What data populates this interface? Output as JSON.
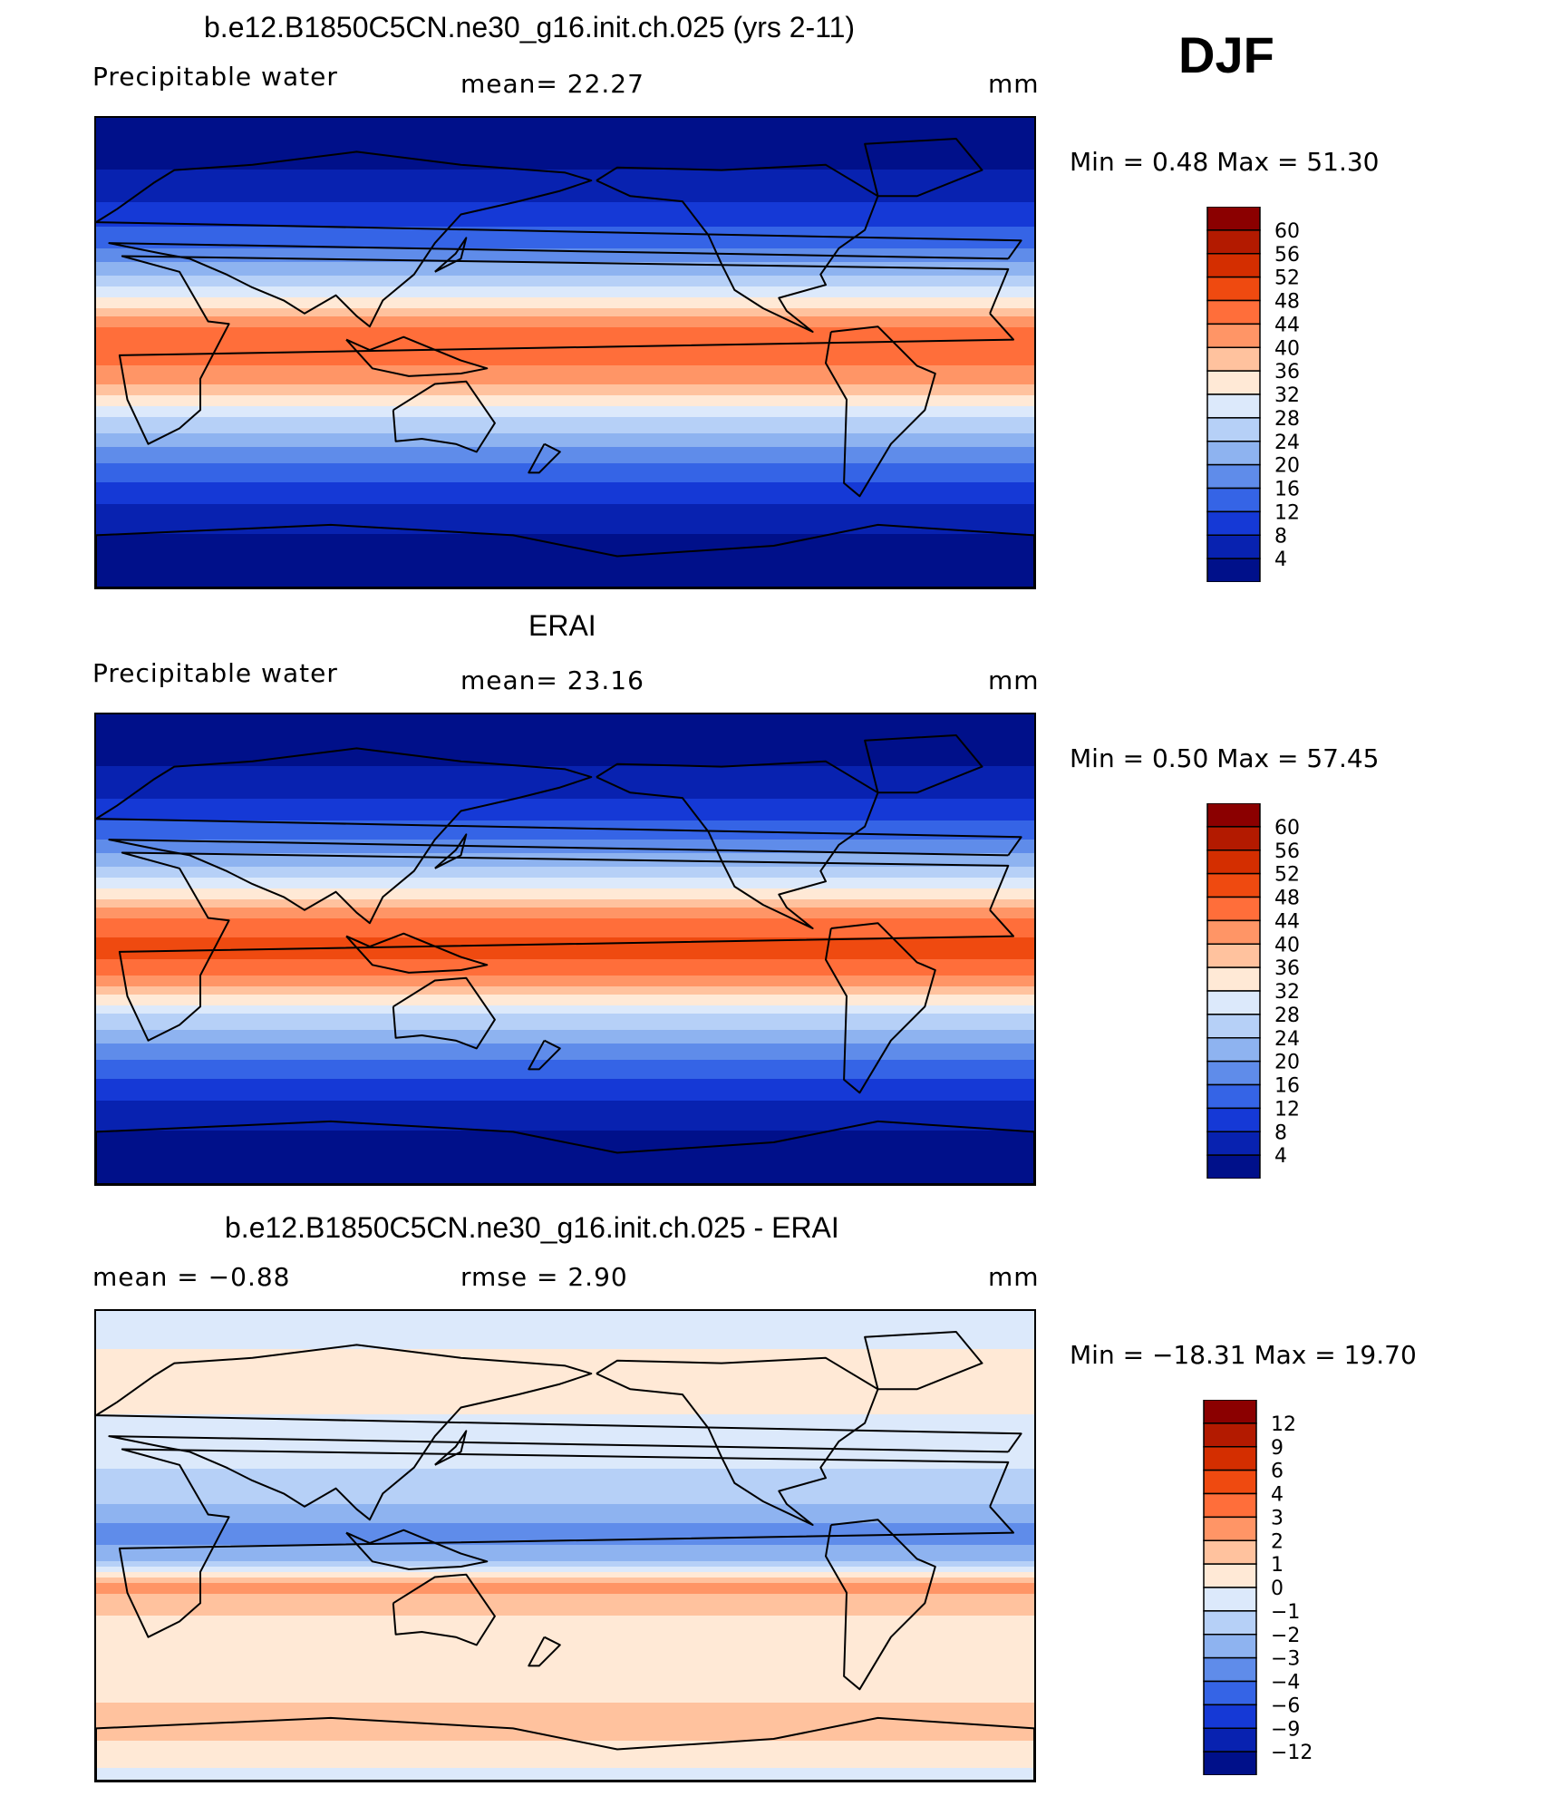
{
  "season": "DJF",
  "panels": [
    {
      "title": "b.e12.B1850C5CN.ne30_g16.init.ch.025 (yrs 2-11)",
      "left_label": "Precipitable  water",
      "center_label": "mean=   22.27",
      "right_label": "mm",
      "minmax": "Min  =     0.48  Max  =    51.30"
    },
    {
      "title": "ERAI",
      "left_label": "Precipitable  water",
      "center_label": "mean=   23.16",
      "right_label": "mm",
      "minmax": "Min  =     0.50  Max  =    57.45"
    },
    {
      "title": "b.e12.B1850C5CN.ne30_g16.init.ch.025 - ERAI",
      "left_label": "mean  =   −0.88",
      "center_label": "rmse  =     2.90",
      "right_label": "mm",
      "minmax": "Min  =  −18.31  Max  =    19.70"
    }
  ],
  "chart_data": [
    {
      "type": "heatmap",
      "title": "b.e12.B1850C5CN.ne30_g16.init.ch.025 (yrs 2-11)",
      "variable": "Precipitable water",
      "units": "mm",
      "mean": 22.27,
      "min": 0.48,
      "max": 51.3,
      "colorbar_levels": [
        "60",
        "56",
        "52",
        "48",
        "44",
        "40",
        "36",
        "32",
        "28",
        "24",
        "20",
        "16",
        "12",
        "8",
        "4"
      ],
      "colorbar_colors": [
        "#8b0000",
        "#b31a00",
        "#d42e00",
        "#ef4a10",
        "#ff6e3a",
        "#ff9566",
        "#ffc29e",
        "#ffe9d6",
        "#dce9fb",
        "#b6d0f7",
        "#8eb3f0",
        "#5f8cea",
        "#3564e6",
        "#1539d6",
        "#0822b0",
        "#00108a"
      ],
      "bands": [
        {
          "lat": 90,
          "value": 2
        },
        {
          "lat": 70,
          "value": 4
        },
        {
          "lat": 55,
          "value": 9
        },
        {
          "lat": 40,
          "value": 16
        },
        {
          "lat": 25,
          "value": 28
        },
        {
          "lat": 10,
          "value": 44
        },
        {
          "lat": 0,
          "value": 46
        },
        {
          "lat": -10,
          "value": 42
        },
        {
          "lat": -25,
          "value": 28
        },
        {
          "lat": -40,
          "value": 17
        },
        {
          "lat": -55,
          "value": 9
        },
        {
          "lat": -70,
          "value": 4
        },
        {
          "lat": -90,
          "value": 2
        }
      ]
    },
    {
      "type": "heatmap",
      "title": "ERAI",
      "variable": "Precipitable water",
      "units": "mm",
      "mean": 23.16,
      "min": 0.5,
      "max": 57.45,
      "colorbar_levels": [
        "60",
        "56",
        "52",
        "48",
        "44",
        "40",
        "36",
        "32",
        "28",
        "24",
        "20",
        "16",
        "12",
        "8",
        "4"
      ],
      "colorbar_colors": [
        "#8b0000",
        "#b31a00",
        "#d42e00",
        "#ef4a10",
        "#ff6e3a",
        "#ff9566",
        "#ffc29e",
        "#ffe9d6",
        "#dce9fb",
        "#b6d0f7",
        "#8eb3f0",
        "#5f8cea",
        "#3564e6",
        "#1539d6",
        "#0822b0",
        "#00108a"
      ],
      "bands": [
        {
          "lat": 90,
          "value": 2
        },
        {
          "lat": 70,
          "value": 4
        },
        {
          "lat": 55,
          "value": 9
        },
        {
          "lat": 40,
          "value": 17
        },
        {
          "lat": 25,
          "value": 30
        },
        {
          "lat": 10,
          "value": 46
        },
        {
          "lat": 0,
          "value": 50
        },
        {
          "lat": -10,
          "value": 44
        },
        {
          "lat": -25,
          "value": 28
        },
        {
          "lat": -40,
          "value": 17
        },
        {
          "lat": -55,
          "value": 9
        },
        {
          "lat": -70,
          "value": 4
        },
        {
          "lat": -90,
          "value": 2
        }
      ]
    },
    {
      "type": "heatmap",
      "title": "b.e12.B1850C5CN.ne30_g16.init.ch.025 - ERAI",
      "units": "mm",
      "mean": -0.88,
      "rmse": 2.9,
      "min": -18.31,
      "max": 19.7,
      "colorbar_levels": [
        "12",
        "9",
        "6",
        "4",
        "3",
        "2",
        "1",
        "0",
        "−1",
        "−2",
        "−3",
        "−4",
        "−6",
        "−9",
        "−12"
      ],
      "colorbar_colors": [
        "#8b0000",
        "#b31a00",
        "#d42e00",
        "#ef4a10",
        "#ff6e3a",
        "#ff9566",
        "#ffc29e",
        "#ffe9d6",
        "#dce9fb",
        "#b6d0f7",
        "#8eb3f0",
        "#5f8cea",
        "#3564e6",
        "#1539d6",
        "#0822b0",
        "#00108a"
      ],
      "bands": [
        {
          "lat": 90,
          "value": -0.5
        },
        {
          "lat": 60,
          "value": 0.5
        },
        {
          "lat": 40,
          "value": -0.5
        },
        {
          "lat": 20,
          "value": -1.5
        },
        {
          "lat": 5,
          "value": -3.5
        },
        {
          "lat": -5,
          "value": -2.5
        },
        {
          "lat": -15,
          "value": 2.5
        },
        {
          "lat": -30,
          "value": 0.5
        },
        {
          "lat": -50,
          "value": 0.5
        },
        {
          "lat": -70,
          "value": 1.5
        },
        {
          "lat": -90,
          "value": -0.5
        }
      ]
    }
  ]
}
